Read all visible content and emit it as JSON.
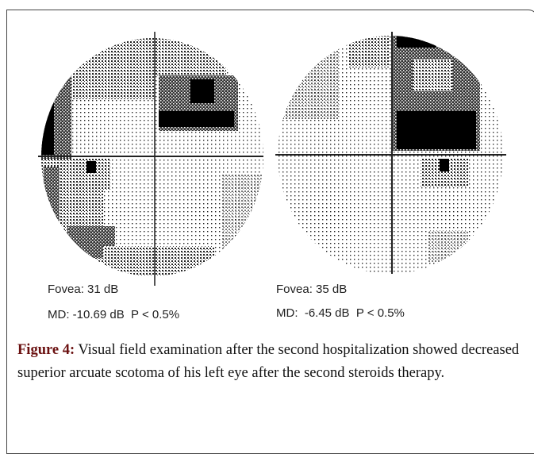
{
  "figure": {
    "left": {
      "fovea": "Fovea: 31 dB",
      "md": "MD: -10.69 dB  P < 0.5%"
    },
    "right": {
      "fovea": "Fovea: 35 dB",
      "md": "MD:  -6.45 dB  P < 0.5%"
    }
  },
  "caption": {
    "label": "Figure 4:",
    "text": " Visual field examination after the second hospitalization showed decreased superior arcuate scotoma of his left eye after the second steroids therapy."
  }
}
